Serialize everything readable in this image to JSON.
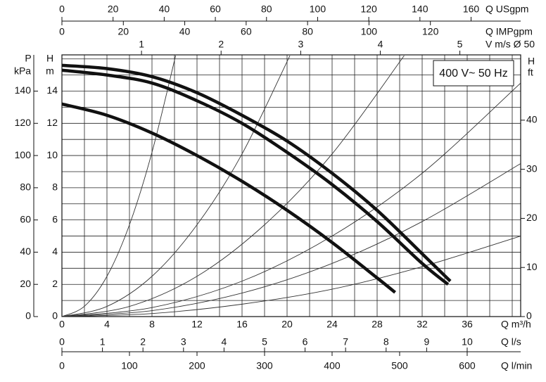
{
  "chart_data": {
    "type": "line",
    "annotation": "400 V~ 50 Hz",
    "xlabel": "Q m³/h",
    "xlim": [
      0,
      40.75
    ],
    "xticks": [
      0,
      4,
      8,
      12,
      16,
      20,
      24,
      28,
      32,
      36
    ],
    "minor_xticks": [
      2,
      6,
      10,
      14,
      18,
      22,
      26,
      30,
      34,
      38,
      40
    ],
    "ylabel": [
      "H",
      "m"
    ],
    "ylim": [
      0,
      16.25
    ],
    "yticks": [
      0,
      2,
      4,
      6,
      8,
      10,
      12,
      14
    ],
    "minor_yticks": [
      1,
      3,
      5,
      7,
      9,
      11,
      13,
      15,
      16
    ],
    "grid": true,
    "secondary_x_axes": [
      {
        "label": "Q USgpm",
        "lim": [
          0,
          179.4
        ],
        "ticks": [
          0,
          20,
          40,
          60,
          80,
          100,
          120,
          140,
          160
        ]
      },
      {
        "label": "Q IMPgpm",
        "lim": [
          0,
          149.4
        ],
        "ticks": [
          0,
          20,
          40,
          60,
          80,
          100,
          120
        ]
      },
      {
        "label": "V m/s Ø 50",
        "lim": [
          0,
          5.764
        ],
        "ticks": [
          1,
          2,
          3,
          4,
          5
        ]
      },
      {
        "label": "Q l/s",
        "lim": [
          0,
          11.32
        ],
        "ticks": [
          0,
          1,
          2,
          3,
          4,
          5,
          6,
          7,
          8,
          9,
          10
        ]
      },
      {
        "label": "Q l/min",
        "lim": [
          0,
          679.2
        ],
        "ticks": [
          0,
          100,
          200,
          300,
          400,
          500,
          600
        ]
      }
    ],
    "secondary_y_axes": [
      {
        "label": [
          "P",
          "kPa"
        ],
        "lim": [
          0,
          162.5
        ],
        "ticks": [
          0,
          20,
          40,
          60,
          80,
          100,
          120,
          140
        ]
      },
      {
        "label": [
          "H",
          "ft"
        ],
        "lim": [
          0,
          53.3
        ],
        "ticks": [
          0,
          10,
          20,
          30,
          40
        ]
      }
    ],
    "series": [
      {
        "color": "#111111",
        "x": [
          0,
          4,
          8,
          12,
          16,
          20,
          24,
          28,
          32,
          34.5
        ],
        "values": [
          15.6,
          15.4,
          14.9,
          13.9,
          12.5,
          10.9,
          8.9,
          6.6,
          3.9,
          2.2
        ]
      },
      {
        "color": "#111111",
        "x": [
          0,
          4,
          8,
          12,
          16,
          20,
          24,
          28,
          32,
          34.3
        ],
        "values": [
          15.3,
          15.0,
          14.5,
          13.4,
          12.0,
          10.2,
          8.2,
          5.9,
          3.3,
          2.0
        ]
      },
      {
        "color": "#111111",
        "x": [
          0,
          4,
          8,
          12,
          16,
          20,
          24,
          28,
          29.6
        ],
        "values": [
          13.2,
          12.5,
          11.4,
          10.0,
          8.4,
          6.6,
          4.6,
          2.4,
          1.5
        ]
      }
    ],
    "system_curves": [
      {
        "color": "#333333",
        "x": [
          0,
          2,
          4,
          6,
          8,
          10.1
        ],
        "values": [
          0,
          0.64,
          2.5,
          5.7,
          10.2,
          16.2
        ]
      },
      {
        "color": "#333333",
        "x": [
          0,
          4,
          8,
          12,
          16,
          20.25
        ],
        "values": [
          0,
          0.63,
          2.5,
          5.7,
          10.1,
          16.2
        ]
      },
      {
        "color": "#333333",
        "x": [
          0,
          6,
          12,
          18,
          24,
          30.4
        ],
        "values": [
          0,
          0.63,
          2.5,
          5.7,
          10.1,
          16.2
        ]
      },
      {
        "color": "#333333",
        "x": [
          0,
          8,
          16,
          24,
          32,
          40.75
        ],
        "values": [
          0,
          0.56,
          2.2,
          5.0,
          8.9,
          14.5
        ]
      },
      {
        "color": "#333333",
        "x": [
          0,
          8,
          16,
          24,
          32,
          40.75
        ],
        "values": [
          0,
          0.37,
          1.46,
          3.3,
          5.9,
          9.5
        ]
      },
      {
        "color": "#333333",
        "x": [
          0,
          8,
          16,
          24,
          32,
          40.75
        ],
        "values": [
          0,
          0.19,
          0.77,
          1.7,
          3.1,
          5.0
        ]
      }
    ]
  }
}
